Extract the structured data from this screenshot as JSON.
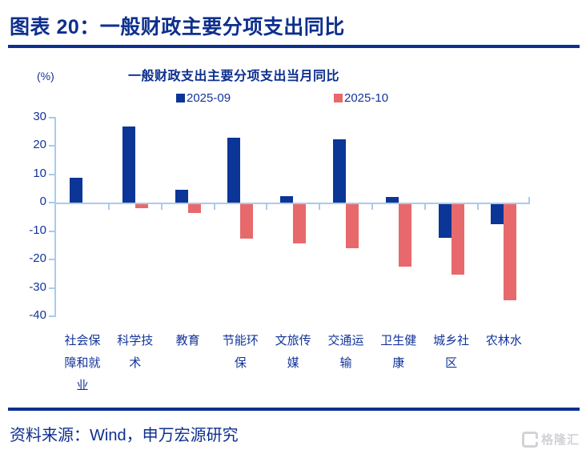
{
  "header": {
    "title": "图表 20：一般财政主要分项支出同比"
  },
  "chart": {
    "unit_label": "(%)",
    "title": "一般财政支出主要分项支出当月同比"
  },
  "chart_data": {
    "type": "bar",
    "title": "一般财政支出主要分项支出当月同比",
    "unit": "%",
    "categories": [
      "社会保障和就业",
      "科学技术",
      "教育",
      "节能环保",
      "文旅传媒",
      "交通运输",
      "卫生健康",
      "城乡社区",
      "农林水"
    ],
    "series": [
      {
        "name": "2025-09",
        "color": "#0b3596",
        "pattern": "solid",
        "values": [
          8.8,
          26.9,
          4.5,
          22.8,
          2.2,
          22.3,
          1.9,
          -11.9,
          -7.1
        ]
      },
      {
        "name": "2025-10",
        "color": "#e8696b",
        "pattern": "white-dots",
        "values": [
          0.0,
          -1.3,
          -3.2,
          -12.2,
          -13.8,
          -15.5,
          -22.1,
          -24.8,
          -33.7
        ]
      }
    ],
    "ylim": [
      -40,
      30
    ],
    "yticks": [
      30,
      20,
      10,
      0,
      -10,
      -20,
      -30,
      -40
    ],
    "grid": false,
    "legend_position": "top"
  },
  "footer": {
    "source": "资料来源：Wind，申万宏源研究",
    "logo_text": "格隆汇"
  },
  "colors": {
    "navy_text": "#0d2f8e",
    "bar_blue": "#0b3596",
    "bar_red": "#e8696b",
    "axis_light_blue": "#a9cbee",
    "logo_gray": "#d2d2d7"
  }
}
